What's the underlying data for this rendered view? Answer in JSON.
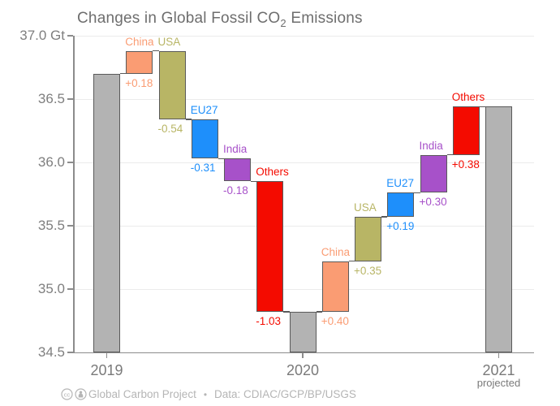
{
  "title": {
    "pre": "Changes in Global Fossil CO",
    "sub": "2",
    "post": " Emissions"
  },
  "chart_data": {
    "type": "waterfall",
    "title": "Changes in Global Fossil CO2 Emissions",
    "unit": "Gt",
    "ylim": [
      34.5,
      37.0
    ],
    "ytick_values": [
      37.0,
      36.5,
      36.0,
      35.5,
      35.0,
      34.5
    ],
    "ytick_labels": [
      "37.0 Gt",
      "36.5",
      "36.0",
      "35.5",
      "35.0",
      "34.5"
    ],
    "grid": true,
    "legend": "none",
    "bar_border_color": "#5a5a5a",
    "axis_color": "#8c8c8c",
    "grid_color": "#ebebeb",
    "tick_label_color": "#7f7f7f",
    "bars": [
      {
        "label": "2019",
        "kind": "total",
        "start": 34.5,
        "end": 36.7,
        "axis_label": "2019",
        "color": "#b3b3b3"
      },
      {
        "label": "China",
        "kind": "delta",
        "value": "+0.18",
        "start": 36.7,
        "end": 36.88,
        "color": "#fa9c73"
      },
      {
        "label": "USA",
        "kind": "delta",
        "value": "-0.54",
        "start": 36.88,
        "end": 36.34,
        "color": "#b8b565"
      },
      {
        "label": "EU27",
        "kind": "delta",
        "value": "-0.31",
        "start": 36.34,
        "end": 36.03,
        "color": "#1e8ffb"
      },
      {
        "label": "India",
        "kind": "delta",
        "value": "-0.18",
        "start": 36.03,
        "end": 35.85,
        "color": "#a751c9"
      },
      {
        "label": "Others",
        "kind": "delta",
        "value": "-1.03",
        "start": 35.85,
        "end": 34.82,
        "color": "#f40b00"
      },
      {
        "label": "2020",
        "kind": "total",
        "start": 34.5,
        "end": 34.82,
        "axis_label": "2020",
        "color": "#b3b3b3"
      },
      {
        "label": "China",
        "kind": "delta",
        "value": "+0.40",
        "start": 34.82,
        "end": 35.22,
        "color": "#fa9c73"
      },
      {
        "label": "USA",
        "kind": "delta",
        "value": "+0.35",
        "start": 35.22,
        "end": 35.57,
        "color": "#b8b565"
      },
      {
        "label": "EU27",
        "kind": "delta",
        "value": "+0.19",
        "start": 35.57,
        "end": 35.76,
        "color": "#1e8ffb"
      },
      {
        "label": "India",
        "kind": "delta",
        "value": "+0.30",
        "start": 35.76,
        "end": 36.06,
        "color": "#a751c9"
      },
      {
        "label": "Others",
        "kind": "delta",
        "value": "+0.38",
        "start": 36.06,
        "end": 36.44,
        "color": "#f40b00"
      },
      {
        "label": "2021",
        "kind": "total",
        "start": 34.5,
        "end": 36.44,
        "axis_label": "2021",
        "axis_sublabel": "projected",
        "color": "#b3b3b3"
      }
    ]
  },
  "footer": {
    "icons": [
      "cc-icon",
      "attribution-icon"
    ],
    "attribution": "Global Carbon Project",
    "separator": "•",
    "source": "Data: CDIAC/GCP/BP/USGS"
  }
}
